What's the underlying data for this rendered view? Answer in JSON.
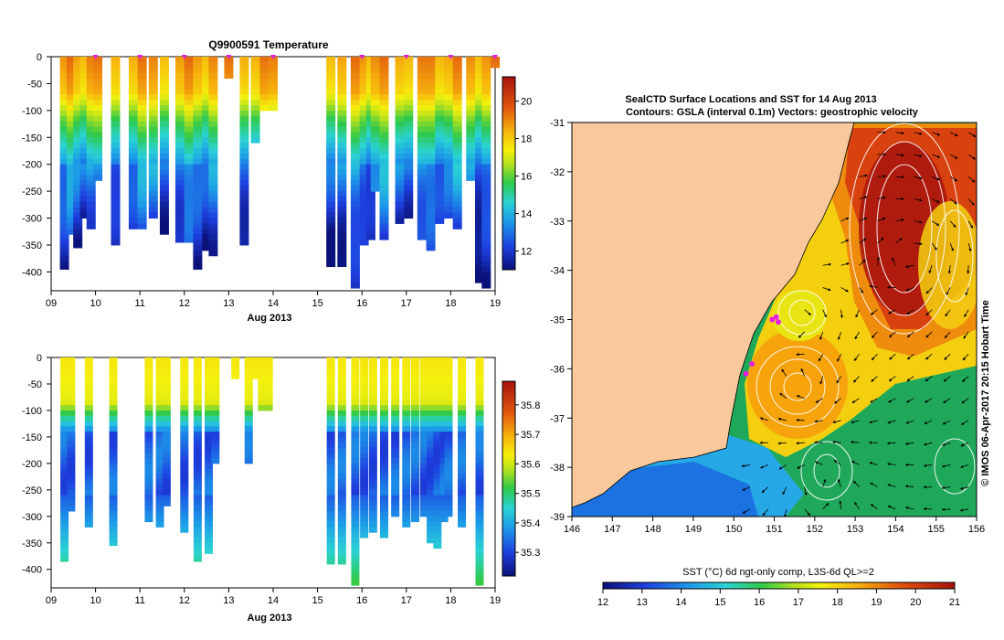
{
  "chart_data": [
    {
      "type": "heatmap",
      "title": "Q9900591  Temperature",
      "xlabel": "Aug 2013",
      "ylabel": "",
      "x_ticks": [
        "09",
        "10",
        "11",
        "12",
        "13",
        "14",
        "15",
        "16",
        "17",
        "18",
        "19"
      ],
      "y_ticks": [
        "0",
        "-50",
        "-100",
        "-150",
        "-200",
        "-250",
        "-300",
        "-350",
        "-400"
      ],
      "xlim": [
        9,
        19
      ],
      "ylim": [
        -435,
        0
      ],
      "colorbar": {
        "min": 11,
        "max": 21.3,
        "ticks": [
          "12",
          "14",
          "16",
          "18",
          "20"
        ],
        "tick_values": [
          12,
          14,
          16,
          18,
          20
        ]
      },
      "profile_times": [
        9.3,
        9.45,
        9.6,
        9.75,
        9.9,
        10.05,
        10.45,
        10.85,
        11.05,
        11.3,
        11.55,
        11.9,
        12.1,
        12.3,
        12.5,
        12.65,
        13.0,
        13.35,
        13.6,
        13.8,
        14.0,
        15.3,
        15.55,
        15.85,
        16.05,
        16.2,
        16.3,
        16.5,
        16.85,
        17.05,
        17.35,
        17.55,
        17.75,
        17.95,
        18.15,
        18.45,
        18.65,
        18.8,
        19.0
      ],
      "profile_max_depth": [
        395,
        330,
        355,
        300,
        320,
        230,
        350,
        320,
        320,
        300,
        330,
        345,
        345,
        395,
        360,
        370,
        40,
        350,
        160,
        100,
        100,
        390,
        390,
        430,
        350,
        340,
        250,
        340,
        310,
        300,
        340,
        360,
        310,
        300,
        320,
        230,
        420,
        430,
        20
      ],
      "surface_markers": [
        10,
        11,
        12,
        13,
        14,
        16,
        17,
        18,
        19
      ]
    },
    {
      "type": "heatmap",
      "title": "",
      "xlabel": "Aug 2013",
      "ylabel": "",
      "x_ticks": [
        "09",
        "10",
        "11",
        "12",
        "13",
        "14",
        "15",
        "16",
        "17",
        "18",
        "19"
      ],
      "y_ticks": [
        "0",
        "-50",
        "-100",
        "-150",
        "-200",
        "-250",
        "-300",
        "-350",
        "-400"
      ],
      "xlim": [
        9,
        19
      ],
      "ylim": [
        -435,
        0
      ],
      "colorbar": {
        "min": 35.22,
        "max": 35.88,
        "ticks": [
          "35.3",
          "35.4",
          "35.5",
          "35.6",
          "35.7",
          "35.8"
        ],
        "tick_values": [
          35.3,
          35.4,
          35.5,
          35.6,
          35.7,
          35.8
        ]
      },
      "profile_times": [
        9.3,
        9.45,
        9.85,
        10.4,
        11.2,
        11.45,
        11.6,
        12.0,
        12.3,
        12.55,
        12.7,
        13.15,
        13.45,
        13.6,
        13.75,
        13.9,
        15.3,
        15.55,
        15.85,
        16.05,
        16.25,
        16.5,
        16.75,
        17.0,
        17.2,
        17.4,
        17.55,
        17.7,
        17.85,
        17.95,
        18.25,
        18.65
      ],
      "profile_max_depth": [
        385,
        290,
        320,
        355,
        310,
        320,
        280,
        330,
        385,
        370,
        200,
        40,
        200,
        40,
        100,
        100,
        390,
        390,
        430,
        340,
        330,
        340,
        300,
        320,
        310,
        300,
        350,
        360,
        310,
        300,
        320,
        430
      ]
    },
    {
      "type": "heatmap",
      "title": "SealCTD Surface Locations and SST for 14 Aug 2013",
      "subtitle": "Contours: GSLA (interval 0.1m) Vectors: geostrophic velocity",
      "xlabel": "",
      "ylabel": "",
      "x_ticks": [
        "146",
        "147",
        "148",
        "149",
        "150",
        "151",
        "152",
        "153",
        "154",
        "155",
        "156"
      ],
      "y_ticks": [
        "-31",
        "-32",
        "-33",
        "-34",
        "-35",
        "-36",
        "-37",
        "-38",
        "-39"
      ],
      "xlim": [
        146,
        156
      ],
      "ylim": [
        -39,
        -31
      ],
      "colorbar": {
        "min": 12,
        "max": 21,
        "ticks": [
          "12",
          "13",
          "14",
          "15",
          "16",
          "17",
          "18",
          "19",
          "20",
          "21"
        ],
        "label": "SST (°C) 6d ngt-only comp, L3S-6d QL>=2"
      },
      "eddies": [
        {
          "name": "warm-core-north",
          "lon": 154.5,
          "lat": -33.7,
          "sst": 20.5
        },
        {
          "name": "warm-core-central",
          "lon": 151.9,
          "lat": -36.5,
          "sst": 19.0
        },
        {
          "name": "warm-core-small",
          "lon": 151.4,
          "lat": -35.0,
          "sst": 18.5
        },
        {
          "name": "cold-core-south",
          "lon": 152.0,
          "lat": -38.1,
          "sst": 15.5
        }
      ],
      "seal_locations": [
        [
          151.05,
          -34.95
        ],
        [
          151.1,
          -35.05
        ],
        [
          150.95,
          -35.0
        ],
        [
          150.45,
          -35.9
        ],
        [
          150.3,
          -36.1
        ]
      ],
      "side_label": "© IMOS 06-Apr-2017 20:15 Hobart Time"
    }
  ]
}
